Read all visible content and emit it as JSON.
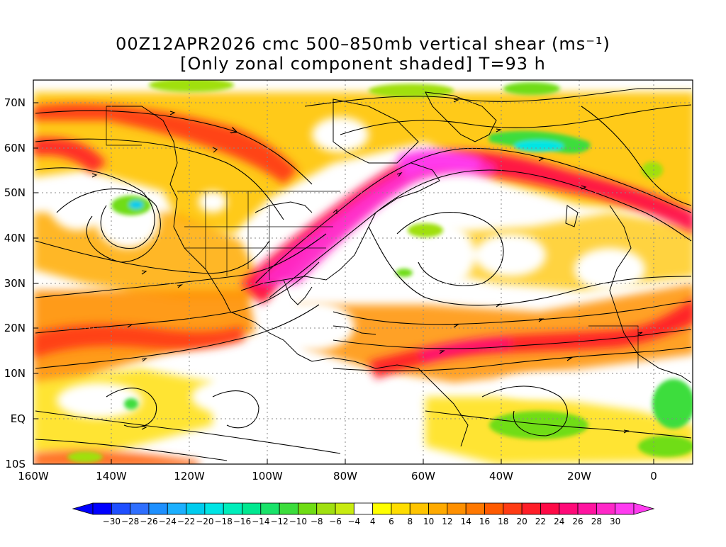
{
  "title": {
    "line1": "00Z12APR2026 cmc 500–850mb vertical shear (ms⁻¹)",
    "line2": "[Only zonal component shaded] T=93 h"
  },
  "lat_labels": [
    "70N",
    "60N",
    "50N",
    "40N",
    "30N",
    "20N",
    "10N",
    "EQ",
    "10S"
  ],
  "lon_labels": [
    "160W",
    "140W",
    "120W",
    "100W",
    "80W",
    "60W",
    "40W",
    "20W",
    "0"
  ],
  "colorbar": {
    "labels": [
      "-30",
      "-28",
      "-26",
      "-24",
      "-22",
      "-20",
      "-18",
      "-16",
      "-14",
      "-12",
      "-10",
      "-8",
      "-6",
      "-4",
      "4",
      "6",
      "8",
      "10",
      "12",
      "14",
      "16",
      "18",
      "20",
      "22",
      "24",
      "26",
      "28",
      "30"
    ],
    "colors": [
      "#0000ff",
      "#1f4fff",
      "#2f6fff",
      "#1e90ff",
      "#1cb0ff",
      "#00ccee",
      "#00e5e5",
      "#00eebb",
      "#00e890",
      "#19e36a",
      "#3cdd3c",
      "#6fdd14",
      "#a0e010",
      "#c8eb10",
      "#ffffff",
      "#ffff00",
      "#ffdd00",
      "#ffc400",
      "#ffaa00",
      "#ff9000",
      "#ff7800",
      "#ff5a00",
      "#ff3c14",
      "#ff1e28",
      "#ff0a46",
      "#ff0a78",
      "#ff14a0",
      "#ff28c8",
      "#ff3cf0"
    ]
  }
}
